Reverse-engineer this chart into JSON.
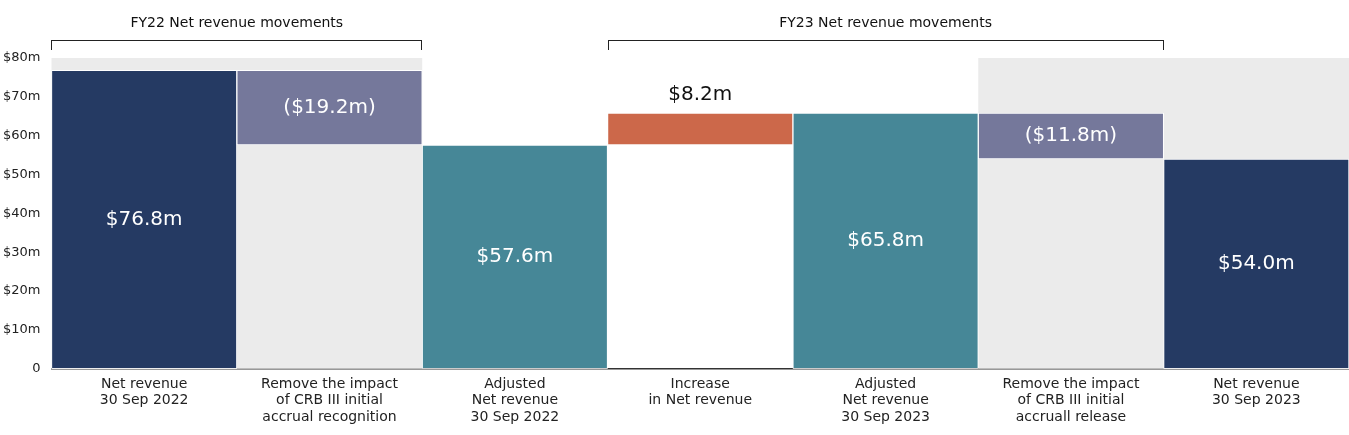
{
  "chart_data": {
    "type": "bar",
    "categories": [
      "Net revenue\n30 Sep 2022",
      "Remove the impact\nof CRB III initial\naccrual recognition",
      "Adjusted\nNet revenue\n30 Sep 2022",
      "Increase\nin Net revenue",
      "Adjusted\nNet revenue\n30 Sep 2023",
      "Remove the impact\nof CRB III initial\naccruall release",
      "Net revenue\n30 Sep 2023"
    ],
    "values": [
      76.8,
      -19.2,
      57.6,
      8.2,
      65.8,
      -11.8,
      54.0
    ],
    "base": [
      0,
      76.8,
      0,
      57.6,
      0,
      65.8,
      0
    ],
    "colors": [
      "#253a63",
      "#75789b",
      "#468797",
      "#cc684a",
      "#468797",
      "#75789b",
      "#253a63"
    ],
    "value_labels": [
      "$76.8m",
      "($19.2m)",
      "$57.6m",
      "$8.2m",
      "$65.8m",
      "($11.8m)",
      "$54.0m"
    ],
    "ylim": [
      0,
      80
    ],
    "yticks": [
      {
        "value": 0,
        "label": "0"
      },
      {
        "value": 10,
        "label": "$10m"
      },
      {
        "value": 20,
        "label": "$20m"
      },
      {
        "value": 30,
        "label": "$30m"
      },
      {
        "value": 40,
        "label": "$40m"
      },
      {
        "value": 50,
        "label": "$50m"
      },
      {
        "value": 60,
        "label": "$60m"
      },
      {
        "value": 70,
        "label": "$70m"
      },
      {
        "value": 80,
        "label": "$80m"
      }
    ],
    "bands": [
      {
        "axis": "x",
        "from": "Net revenue\n30 Sep 2022",
        "to": "Remove the impact\nof CRB III initial\naccrual recognition",
        "color": "#ebebeb"
      },
      {
        "axis": "x",
        "from": "Remove the impact\nof CRB III initial\naccruall release",
        "to": "Net revenue\n30 Sep 2023",
        "color": "#ebebeb"
      }
    ],
    "annotations": [
      "FY22 Net revenue movements",
      "FY23 Net revenue movements"
    ]
  }
}
